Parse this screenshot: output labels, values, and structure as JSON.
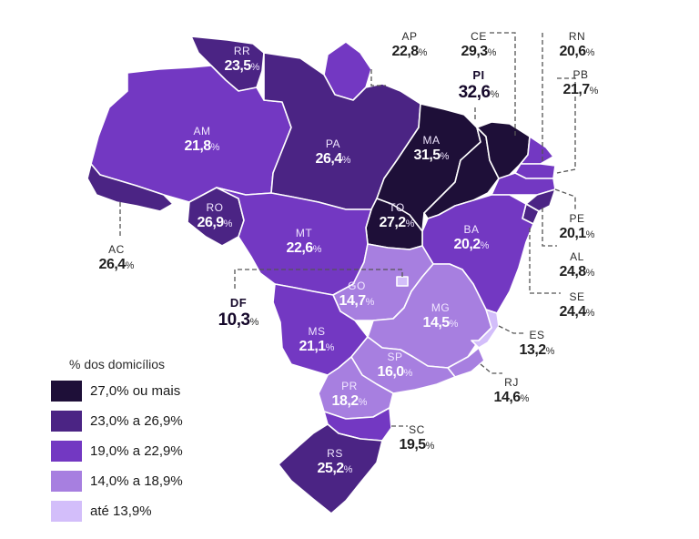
{
  "legend": {
    "title": "% dos domicílios",
    "items": [
      {
        "label": "27,0% ou mais",
        "color": "#1e0f38"
      },
      {
        "label": "23,0% a 26,9%",
        "color": "#4b2484"
      },
      {
        "label": "19,0% a 22,9%",
        "color": "#7338c2"
      },
      {
        "label": "14,0% a 18,9%",
        "color": "#a77fe0"
      },
      {
        "label": "até 13,9%",
        "color": "#d3befa"
      }
    ]
  },
  "percent_sign": "%",
  "states": [
    {
      "code": "RR",
      "value": "23,5",
      "class": 1
    },
    {
      "code": "AP",
      "value": "22,8",
      "class": 2
    },
    {
      "code": "AM",
      "value": "21,8",
      "class": 2
    },
    {
      "code": "PA",
      "value": "26,4",
      "class": 1
    },
    {
      "code": "MA",
      "value": "31,5",
      "class": 0
    },
    {
      "code": "CE",
      "value": "29,3",
      "class": 0
    },
    {
      "code": "PI",
      "value": "32,6",
      "class": 0
    },
    {
      "code": "RN",
      "value": "20,6",
      "class": 2
    },
    {
      "code": "PB",
      "value": "21,7",
      "class": 2
    },
    {
      "code": "PE",
      "value": "20,1",
      "class": 2
    },
    {
      "code": "AL",
      "value": "24,8",
      "class": 1
    },
    {
      "code": "SE",
      "value": "24,4",
      "class": 1
    },
    {
      "code": "BA",
      "value": "20,2",
      "class": 2
    },
    {
      "code": "TO",
      "value": "27,2",
      "class": 0
    },
    {
      "code": "AC",
      "value": "26,4",
      "class": 1
    },
    {
      "code": "RO",
      "value": "26,9",
      "class": 1
    },
    {
      "code": "MT",
      "value": "22,6",
      "class": 2
    },
    {
      "code": "DF",
      "value": "10,3",
      "class": 4
    },
    {
      "code": "GO",
      "value": "14,7",
      "class": 3
    },
    {
      "code": "MG",
      "value": "14,5",
      "class": 3
    },
    {
      "code": "ES",
      "value": "13,2",
      "class": 4
    },
    {
      "code": "MS",
      "value": "21,1",
      "class": 2
    },
    {
      "code": "SP",
      "value": "16,0",
      "class": 3
    },
    {
      "code": "RJ",
      "value": "14,6",
      "class": 3
    },
    {
      "code": "PR",
      "value": "18,2",
      "class": 3
    },
    {
      "code": "SC",
      "value": "19,5",
      "class": 2
    },
    {
      "code": "RS",
      "value": "25,2",
      "class": 1
    }
  ]
}
